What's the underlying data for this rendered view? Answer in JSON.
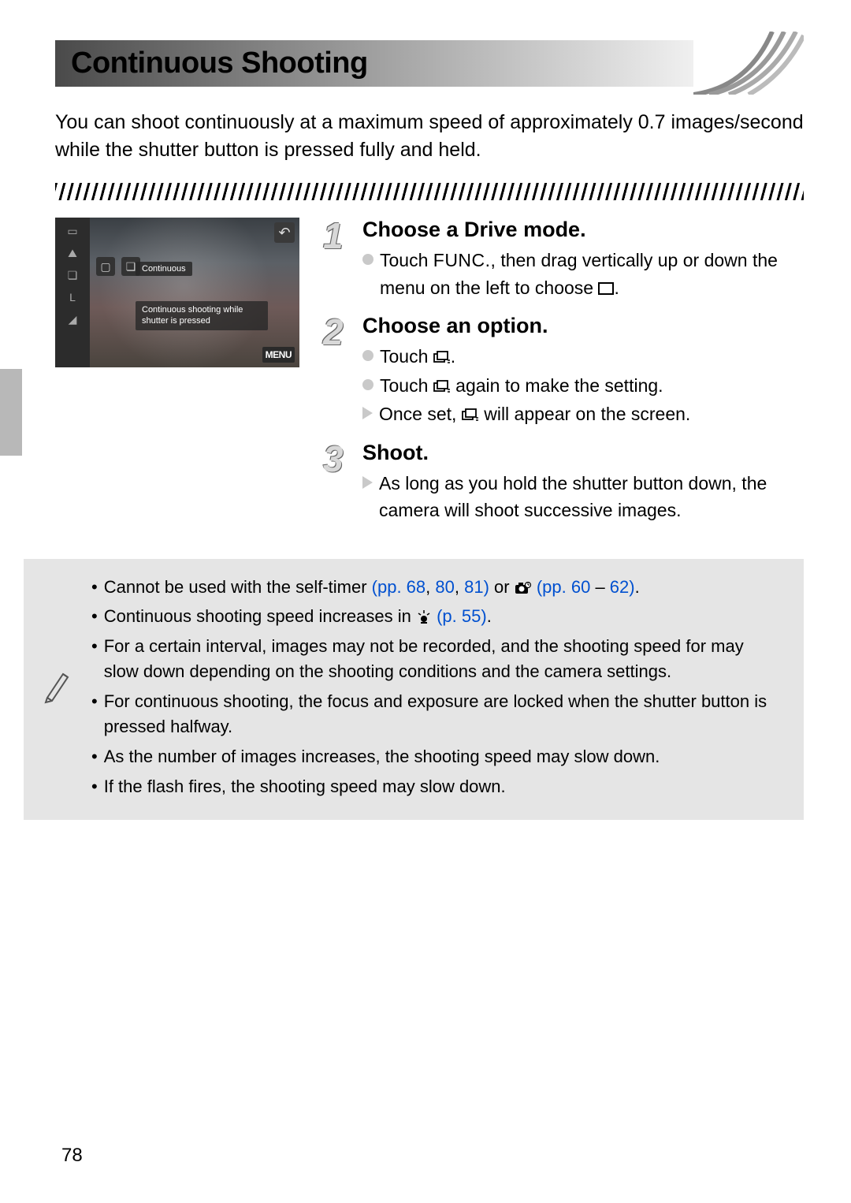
{
  "title": "Continuous Shooting",
  "intro": "You can shoot continuously at a maximum speed of approximately 0.7 images/second while the shutter button is pressed fully and held.",
  "screenshot": {
    "label_mode": "Continuous",
    "label_desc": "Continuous shooting while shutter is pressed",
    "menu_label": "MENU"
  },
  "steps": [
    {
      "num": "1",
      "title": "Choose a Drive mode.",
      "lines": [
        {
          "type": "circle",
          "pre": "Touch ",
          "mid_label": "FUNC.",
          "post": ", then drag vertically up or down the menu on the left to choose ",
          "end_icon": "rect",
          "tail": "."
        }
      ]
    },
    {
      "num": "2",
      "title": "Choose an option.",
      "lines": [
        {
          "type": "circle",
          "pre": "Touch ",
          "end_icon": "burst",
          "tail": "."
        },
        {
          "type": "circle",
          "pre": "Touch ",
          "end_icon": "burst",
          "post2": " again to make the setting."
        },
        {
          "type": "arrow",
          "pre": "Once set, ",
          "end_icon": "burst",
          "post2": " will appear on the screen."
        }
      ]
    },
    {
      "num": "3",
      "title": "Shoot.",
      "lines": [
        {
          "type": "arrow",
          "pre": "As long as you hold the shutter button down, the camera will shoot successive images."
        }
      ]
    }
  ],
  "notes": [
    {
      "segments": [
        {
          "t": "Cannot be used with the self-timer "
        },
        {
          "t": "(pp. 68",
          "link": true
        },
        {
          "t": ", "
        },
        {
          "t": "80",
          "link": true
        },
        {
          "t": ", "
        },
        {
          "t": "81)",
          "link": true
        },
        {
          "t": " or "
        },
        {
          "icon": "cam-timer"
        },
        {
          "t": " "
        },
        {
          "t": "(pp. 60",
          "link": true
        },
        {
          "t": " – "
        },
        {
          "t": "62)",
          "link": true
        },
        {
          "t": "."
        }
      ]
    },
    {
      "segments": [
        {
          "t": "Continuous shooting speed increases in "
        },
        {
          "icon": "lowlight"
        },
        {
          "t": " "
        },
        {
          "t": "(p. 55)",
          "link": true
        },
        {
          "t": "."
        }
      ]
    },
    {
      "segments": [
        {
          "t": "For a certain interval, images may not be recorded, and the shooting speed for may slow down depending on the shooting conditions and the camera settings."
        }
      ]
    },
    {
      "segments": [
        {
          "t": "For continuous shooting, the focus and exposure are locked when the shutter button is pressed halfway."
        }
      ]
    },
    {
      "segments": [
        {
          "t": "As the number of images increases, the shooting speed may slow down."
        }
      ]
    },
    {
      "segments": [
        {
          "t": "If the flash fires, the shooting speed may slow down."
        }
      ]
    }
  ],
  "page_number": "78",
  "colors": {
    "link": "#0050d0",
    "notes_bg": "#e5e5e5",
    "bullet": "#c9c9c9"
  }
}
